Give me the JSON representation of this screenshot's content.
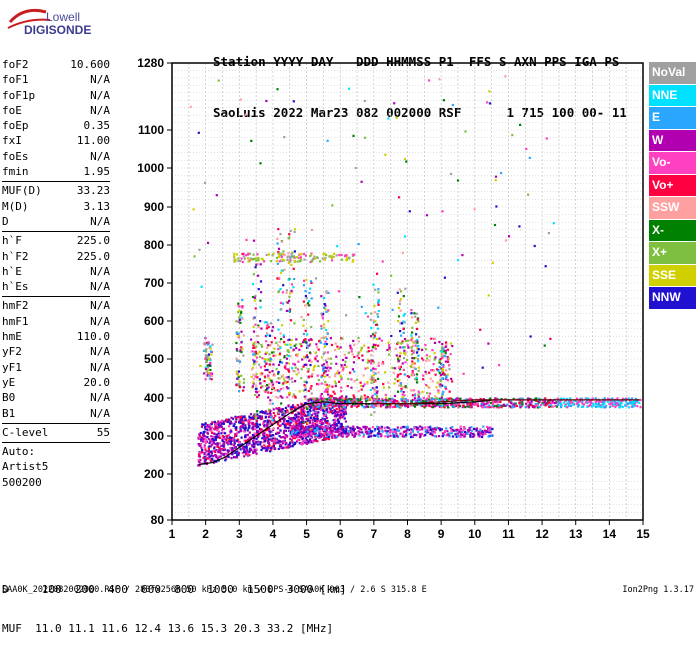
{
  "logo": {
    "line1": "Lowell",
    "line2": "DIGISONDE"
  },
  "header": {
    "line1": "Station YYYY DAY   DDD HHMMSS P1  FFS S AXN PPS IGA PS",
    "line2": "SaoLuis 2022 Mar23 082 002000 RSF      1 715 100 00- 11"
  },
  "params": [
    {
      "name": "foF2",
      "value": "10.600"
    },
    {
      "name": "foF1",
      "value": "N/A"
    },
    {
      "name": "foF1p",
      "value": "N/A"
    },
    {
      "name": "foE",
      "value": "N/A"
    },
    {
      "name": "foEp",
      "value": "0.35"
    },
    {
      "name": "fxI",
      "value": "11.00"
    },
    {
      "name": "foEs",
      "value": "N/A"
    },
    {
      "name": "fmin",
      "value": "1.95"
    },
    {
      "sep": true
    },
    {
      "name": "MUF(D)",
      "value": "33.23"
    },
    {
      "name": "M(D)",
      "value": "3.13"
    },
    {
      "name": "D",
      "value": "N/A"
    },
    {
      "sep": true
    },
    {
      "name": "h`F",
      "value": "225.0"
    },
    {
      "name": "h`F2",
      "value": "225.0"
    },
    {
      "name": "h`E",
      "value": "N/A"
    },
    {
      "name": "h`Es",
      "value": "N/A"
    },
    {
      "sep": true
    },
    {
      "name": "hmF2",
      "value": "N/A"
    },
    {
      "name": "hmF1",
      "value": "N/A"
    },
    {
      "name": "hmE",
      "value": "110.0"
    },
    {
      "name": "yF2",
      "value": "N/A"
    },
    {
      "name": "yF1",
      "value": "N/A"
    },
    {
      "name": "yE",
      "value": "20.0"
    },
    {
      "name": "B0",
      "value": "N/A"
    },
    {
      "name": "B1",
      "value": "N/A"
    },
    {
      "sep": true
    },
    {
      "name": "C-level",
      "value": "55"
    },
    {
      "sep": true
    },
    {
      "name": "Auto:",
      "value": ""
    },
    {
      "name": "Artist5",
      "value": ""
    },
    {
      "name": "500200",
      "value": ""
    }
  ],
  "legend": [
    {
      "label": "NoVal",
      "color": "#a0a0a0"
    },
    {
      "label": "NNE",
      "color": "#00e0ff"
    },
    {
      "label": "E",
      "color": "#2aa6ff"
    },
    {
      "label": "W",
      "color": "#b000b0"
    },
    {
      "label": "Vo-",
      "color": "#ff40c0"
    },
    {
      "label": "Vo+",
      "color": "#ff0040"
    },
    {
      "label": "SSW",
      "color": "#ffa0a0"
    },
    {
      "label": "X-",
      "color": "#008000"
    },
    {
      "label": "X+",
      "color": "#7fbf3f"
    },
    {
      "label": "SSE",
      "color": "#d0d000"
    },
    {
      "label": "NNW",
      "color": "#2010d0"
    }
  ],
  "chart_data": {
    "type": "scatter",
    "xlim": [
      1,
      15
    ],
    "ylim": [
      80,
      1280
    ],
    "x_ticks": [
      1,
      2,
      3,
      4,
      5,
      6,
      7,
      8,
      9,
      10,
      11,
      12,
      13,
      14,
      15
    ],
    "y_tick_labels": [
      "80",
      "200",
      "300",
      "400",
      "500",
      "600",
      "700",
      "800",
      "900",
      "1000",
      "1100",
      "1280"
    ],
    "grid": true,
    "description": "Ionogram: virtual height (km) vs frequency (MHz), echo traces colour-coded by direction",
    "traces": [
      {
        "name": "O-trace F layer lower edge",
        "x": [
          1.8,
          2.2,
          2.6,
          3.0,
          3.5,
          4.0,
          4.5,
          5.0,
          5.5,
          6.0,
          7.0,
          8.0,
          9.0,
          10.0,
          10.6
        ],
        "y": [
          225,
          230,
          245,
          270,
          300,
          330,
          360,
          385,
          390,
          385,
          385,
          385,
          385,
          390,
          395
        ]
      },
      {
        "name": "X-trace",
        "x": [
          7.0,
          8.0,
          9.0,
          10.0,
          11.0,
          12.0,
          13.0,
          14.0,
          14.9
        ],
        "y": [
          385,
          385,
          390,
          395,
          395,
          395,
          395,
          395,
          395
        ]
      }
    ]
  },
  "muf_table": {
    "d_label": "D",
    "d_values": [
      "100",
      "200",
      "400",
      "600",
      "800",
      "1000",
      "1500",
      "3000"
    ],
    "d_unit": "[km]",
    "muf_label": "MUF",
    "muf_values": [
      "11.0",
      "11.1",
      "11.6",
      "12.4",
      "13.6",
      "15.3",
      "20.3",
      "33.2"
    ],
    "muf_unit": "[MHz]"
  },
  "footer": "SAA0K_2022082002000.RSF / 280fx256h 50 kHz 5.0 km / DPS-4 SAA0K 903 / 2.6 S 315.8 E",
  "version": "Ion2Png 1.3.17"
}
